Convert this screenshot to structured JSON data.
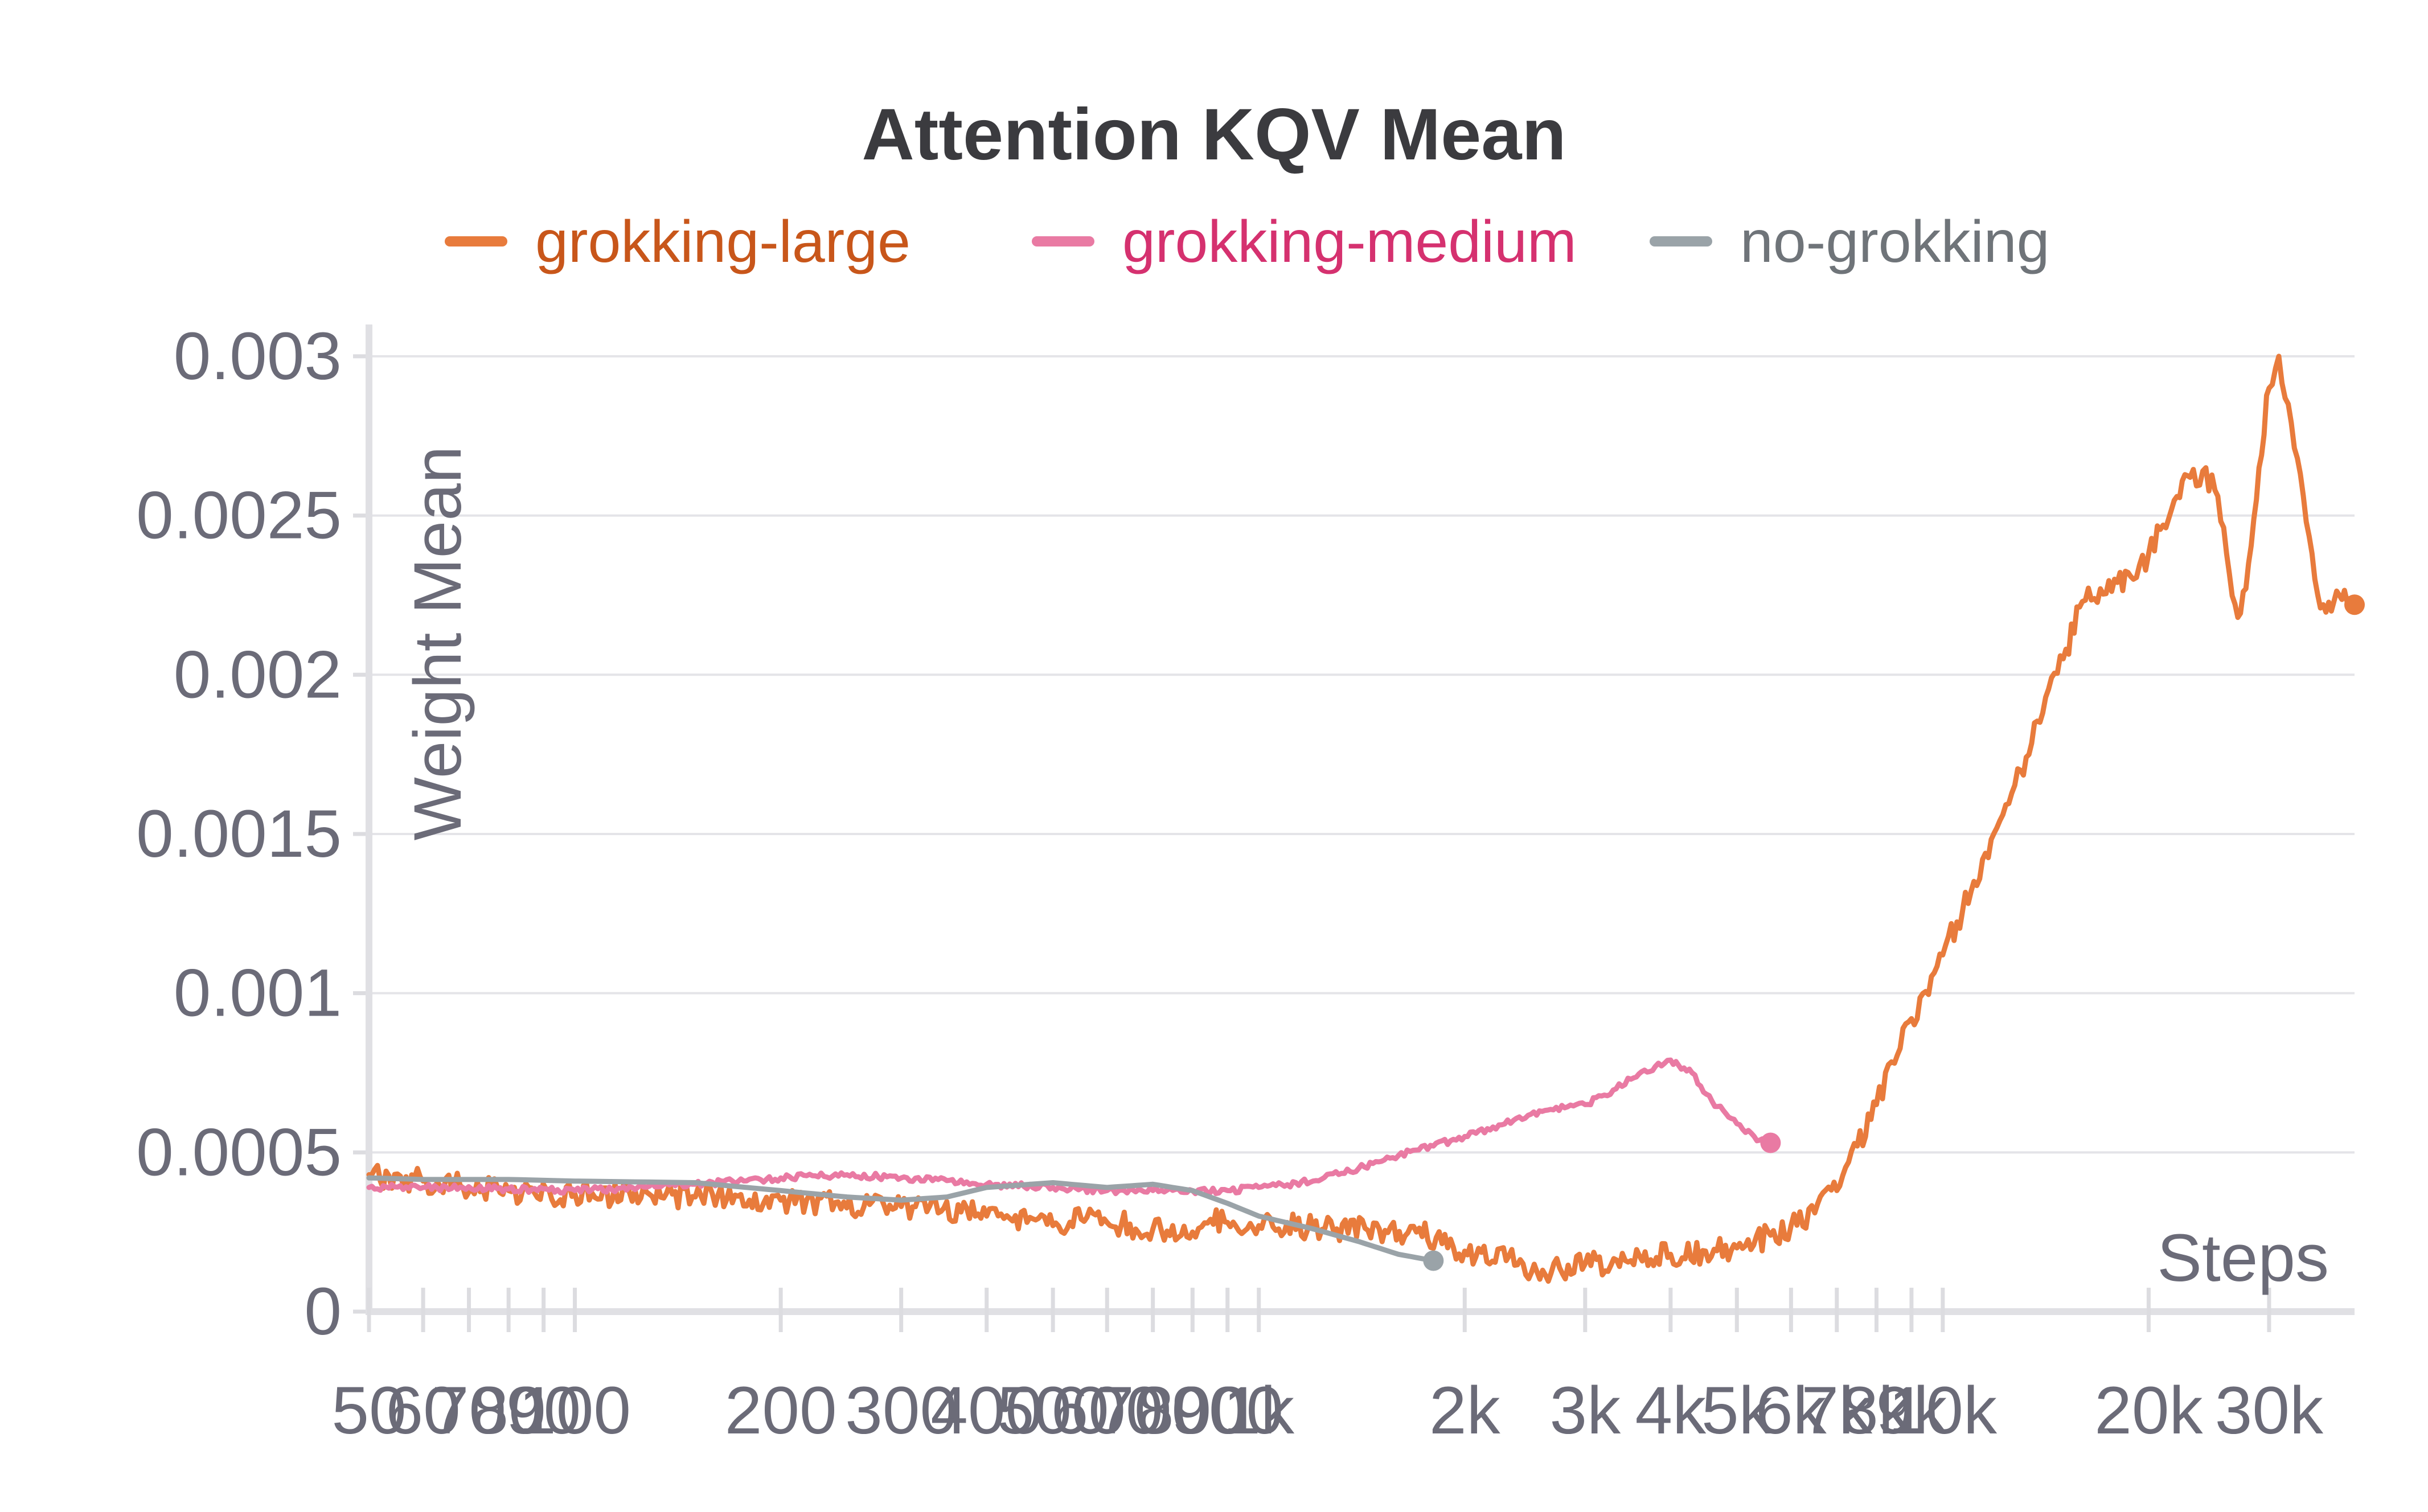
{
  "chart_data": {
    "type": "line",
    "title": "Attention KQV Mean",
    "xlabel": "Steps",
    "ylabel": "Weight Mean",
    "x_scale": "log",
    "xlim": [
      50,
      40000
    ],
    "ylim": [
      0,
      0.0031
    ],
    "legend_position": "top",
    "grid": "horizontal",
    "y_ticks": [
      {
        "value": 0,
        "label": "0"
      },
      {
        "value": 0.0005,
        "label": "0.0005"
      },
      {
        "value": 0.001,
        "label": "0.001"
      },
      {
        "value": 0.0015,
        "label": "0.0015"
      },
      {
        "value": 0.002,
        "label": "0.002"
      },
      {
        "value": 0.0025,
        "label": "0.0025"
      },
      {
        "value": 0.003,
        "label": "0.003"
      }
    ],
    "x_ticks": [
      {
        "value": 50,
        "label": "50"
      },
      {
        "value": 60,
        "label": "60"
      },
      {
        "value": 70,
        "label": "70"
      },
      {
        "value": 80,
        "label": "80"
      },
      {
        "value": 90,
        "label": "90"
      },
      {
        "value": 100,
        "label": "100"
      },
      {
        "value": 200,
        "label": "200"
      },
      {
        "value": 300,
        "label": "300"
      },
      {
        "value": 400,
        "label": "400"
      },
      {
        "value": 500,
        "label": "500"
      },
      {
        "value": 600,
        "label": "600"
      },
      {
        "value": 700,
        "label": "700"
      },
      {
        "value": 800,
        "label": "800"
      },
      {
        "value": 900,
        "label": "900"
      },
      {
        "value": 1000,
        "label": "1k"
      },
      {
        "value": 2000,
        "label": "2k"
      },
      {
        "value": 3000,
        "label": "3k"
      },
      {
        "value": 4000,
        "label": "4k"
      },
      {
        "value": 5000,
        "label": "5k"
      },
      {
        "value": 6000,
        "label": "6k"
      },
      {
        "value": 7000,
        "label": "7k"
      },
      {
        "value": 8000,
        "label": "8k"
      },
      {
        "value": 9000,
        "label": "9k"
      },
      {
        "value": 10000,
        "label": "10k"
      },
      {
        "value": 20000,
        "label": "20k"
      },
      {
        "value": 30000,
        "label": "30k"
      }
    ],
    "series": [
      {
        "name": "grokking-large",
        "color": "#e87b3c",
        "text_color": "#c8561a",
        "jitter": 4e-05,
        "x": [
          50,
          60,
          80,
          100,
          150,
          200,
          300,
          400,
          500,
          550,
          600,
          700,
          800,
          850,
          900,
          1000,
          1100,
          1200,
          1300,
          1500,
          1700,
          2000,
          2300,
          2600,
          3000,
          3500,
          4000,
          4500,
          5000,
          5600,
          6000,
          6500,
          7000,
          7500,
          8000,
          8500,
          9000,
          10000,
          11000,
          12000,
          13000,
          14000,
          15000,
          16000,
          17000,
          18000,
          19000,
          20000,
          21000,
          22000,
          23000,
          24000,
          25000,
          26000,
          27000,
          28000,
          29000,
          30000,
          31000,
          32000,
          33000,
          34000,
          35000,
          36000,
          37000,
          38000,
          39000,
          40000
        ],
        "y": [
          0.00043,
          0.00041,
          0.00038,
          0.00037,
          0.00036,
          0.00035,
          0.00033,
          0.0003,
          0.00027,
          0.00029,
          0.00028,
          0.00026,
          0.00025,
          0.00029,
          0.00028,
          0.00027,
          0.00028,
          0.00026,
          0.00026,
          0.00026,
          0.00025,
          0.00019,
          0.00016,
          0.00013,
          0.00015,
          0.00016,
          0.00018,
          0.00019,
          0.0002,
          0.00024,
          0.00027,
          0.00031,
          0.00038,
          0.00052,
          0.00065,
          0.00078,
          0.00092,
          0.00112,
          0.00132,
          0.00152,
          0.0017,
          0.00188,
          0.00205,
          0.00223,
          0.00227,
          0.00229,
          0.0023,
          0.00238,
          0.00247,
          0.00256,
          0.00262,
          0.00264,
          0.00258,
          0.00238,
          0.00218,
          0.00235,
          0.00265,
          0.0029,
          0.003,
          0.00285,
          0.00268,
          0.00248,
          0.0023,
          0.00222,
          0.0022,
          0.00225,
          0.00223,
          0.00222
        ]
      },
      {
        "name": "grokking-medium",
        "color": "#e97aa3",
        "text_color": "#d5316f",
        "jitter": 1e-05,
        "x": [
          50,
          60,
          80,
          100,
          150,
          200,
          250,
          300,
          400,
          500,
          600,
          700,
          800,
          900,
          1000,
          1200,
          1400,
          1600,
          1800,
          2000,
          2200,
          2500,
          2800,
          3000,
          3200,
          3500,
          3800,
          4000,
          4300,
          4600,
          5000,
          5300,
          5600
        ],
        "y": [
          0.00039,
          0.00039,
          0.000385,
          0.00038,
          0.0004,
          0.00042,
          0.00043,
          0.00042,
          0.0004,
          0.00039,
          0.00038,
          0.00038,
          0.00038,
          0.00038,
          0.00039,
          0.00041,
          0.00045,
          0.00049,
          0.00052,
          0.00055,
          0.00058,
          0.00062,
          0.00064,
          0.00065,
          0.00068,
          0.00073,
          0.00077,
          0.00079,
          0.00075,
          0.00066,
          0.00059,
          0.00055,
          0.00053
        ]
      },
      {
        "name": "no-grokking",
        "color": "#9aa3a8",
        "text_color": "#6f7479",
        "jitter": 0,
        "x": [
          50,
          60,
          80,
          100,
          150,
          200,
          250,
          300,
          350,
          400,
          500,
          600,
          700,
          800,
          900,
          1000,
          1200,
          1400,
          1600,
          1800
        ],
        "y": [
          0.00042,
          0.000415,
          0.000415,
          0.00041,
          0.000405,
          0.00038,
          0.00036,
          0.00035,
          0.00036,
          0.00039,
          0.000405,
          0.00039,
          0.0004,
          0.00038,
          0.00034,
          0.0003,
          0.00026,
          0.00022,
          0.00018,
          0.00016
        ]
      }
    ]
  }
}
